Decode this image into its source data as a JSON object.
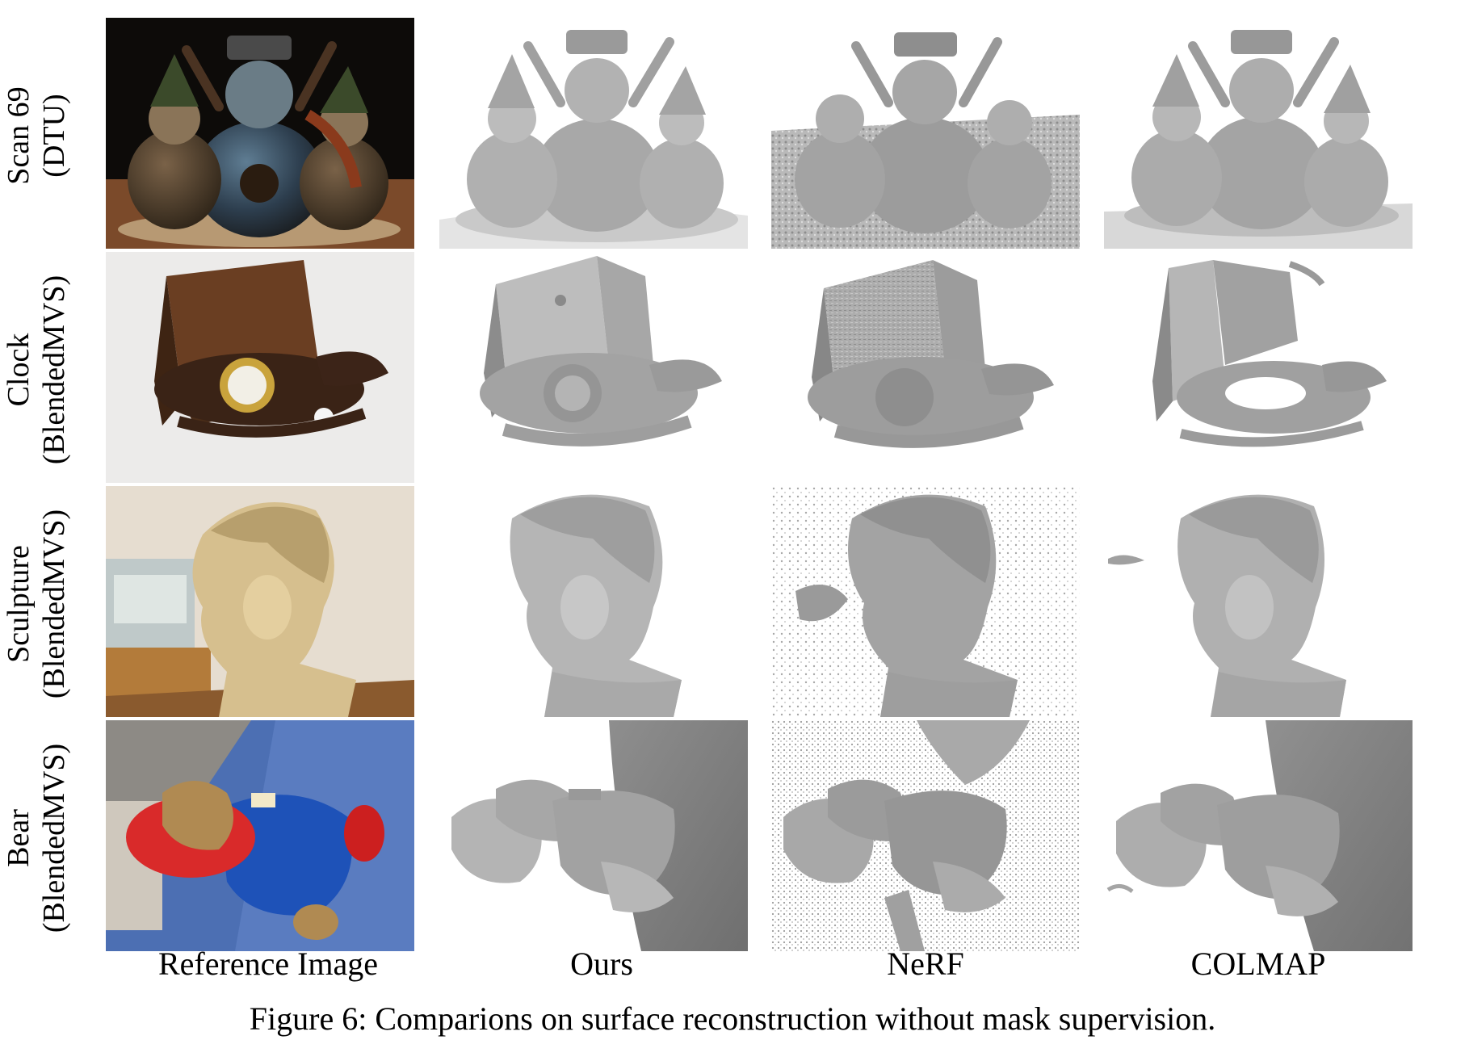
{
  "figure": {
    "caption": "Figure 6: Comparions on surface reconstruction without mask supervision.",
    "columns": [
      {
        "label": "Reference Image"
      },
      {
        "label": "Ours"
      },
      {
        "label": "NeRF"
      },
      {
        "label": "COLMAP"
      }
    ],
    "rows": [
      {
        "name": "Scan 69",
        "dataset": "(DTU)"
      },
      {
        "name": "Clock",
        "dataset": "(BlendedMVS)"
      },
      {
        "name": "Sculpture",
        "dataset": "(BlendedMVS)"
      },
      {
        "name": "Bear",
        "dataset": "(BlendedMVS)"
      }
    ]
  },
  "colors": {
    "mesh_gray": "#a9a9a9",
    "mesh_light": "#d0d0d0",
    "mesh_dark": "#7a7a7a"
  }
}
